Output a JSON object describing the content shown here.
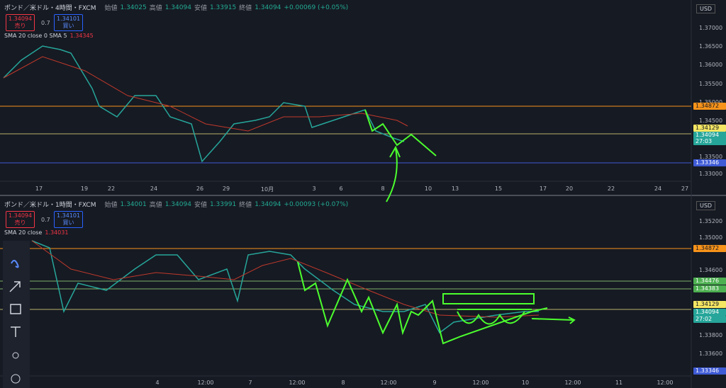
{
  "panels": [
    {
      "header": {
        "symbol": "ポンド／米ドル・4時間・FXCM",
        "open_label": "始値",
        "open": "1.34025",
        "high_label": "高値",
        "high": "1.34094",
        "low_label": "安値",
        "low": "1.33915",
        "close_label": "終値",
        "close": "1.34094",
        "change": "+0.00069 (+0.05%)"
      },
      "trade": {
        "sell_price": "1.34094",
        "sell_label": "売り",
        "spread": "0.7",
        "buy_price": "1.34101",
        "buy_label": "買い"
      },
      "indicator": {
        "name": "SMA 20 close 0 SMA 5",
        "value": "1.34345"
      },
      "currency": "USD",
      "price_ticks": [
        "1.37000",
        "1.36500",
        "1.36000",
        "1.35500",
        "1.35000",
        "1.34500",
        "1.33500",
        "1.33000"
      ],
      "price_labels": [
        "1.34872",
        "1.34129",
        "1.34094",
        "27:03",
        "1.33346"
      ],
      "time_ticks": [
        "17",
        "19",
        "22",
        "24",
        "26",
        "29",
        "10月",
        "3",
        "6",
        "8",
        "10",
        "13",
        "15",
        "17",
        "20",
        "22",
        "24",
        "27"
      ]
    },
    {
      "header": {
        "symbol": "ポンド／米ドル・1時間・FXCM",
        "open_label": "始値",
        "open": "1.34001",
        "high_label": "高値",
        "high": "1.34094",
        "low_label": "安値",
        "low": "1.33991",
        "close_label": "終値",
        "close": "1.34094",
        "change": "+0.00093 (+0.07%)"
      },
      "trade": {
        "sell_price": "1.34094",
        "sell_label": "売り",
        "spread": "0.7",
        "buy_price": "1.34101",
        "buy_label": "買い"
      },
      "indicator": {
        "name": "SMA 20 close",
        "value": "1.34031"
      },
      "currency": "USD",
      "price_ticks": [
        "1.35200",
        "1.35000",
        "1.34600",
        "1.33800",
        "1.33600"
      ],
      "price_labels": [
        "1.34872",
        "1.34476",
        "1.34383",
        "1.34129",
        "1.34094",
        "27:02",
        "1.33346"
      ],
      "time_ticks": [
        "4",
        "12:00",
        "7",
        "12:00",
        "8",
        "12:00",
        "9",
        "12:00",
        "10",
        "12:00",
        "11",
        "12:00"
      ]
    }
  ]
}
